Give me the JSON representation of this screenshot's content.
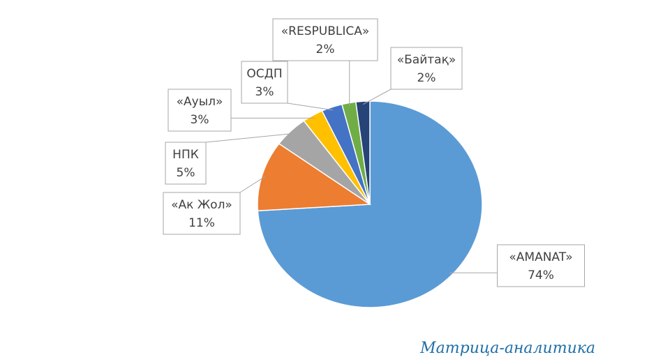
{
  "chart_data": {
    "type": "pie",
    "categories": [
      "«AMANAT»",
      "«Ак Жол»",
      "НПК",
      "«Ауыл»",
      "ОСДП",
      "«RESPUBLICA»",
      "«Байтақ»"
    ],
    "values": [
      74,
      11,
      5,
      3,
      3,
      2,
      2
    ],
    "value_labels": [
      "74%",
      "11%",
      "5%",
      "3%",
      "3%",
      "2%",
      "2%"
    ],
    "colors": [
      "#5b9bd5",
      "#ed7d31",
      "#a5a5a5",
      "#ffc000",
      "#4472c4",
      "#70ad47",
      "#264478"
    ]
  },
  "watermark": "Матрица-аналитика"
}
